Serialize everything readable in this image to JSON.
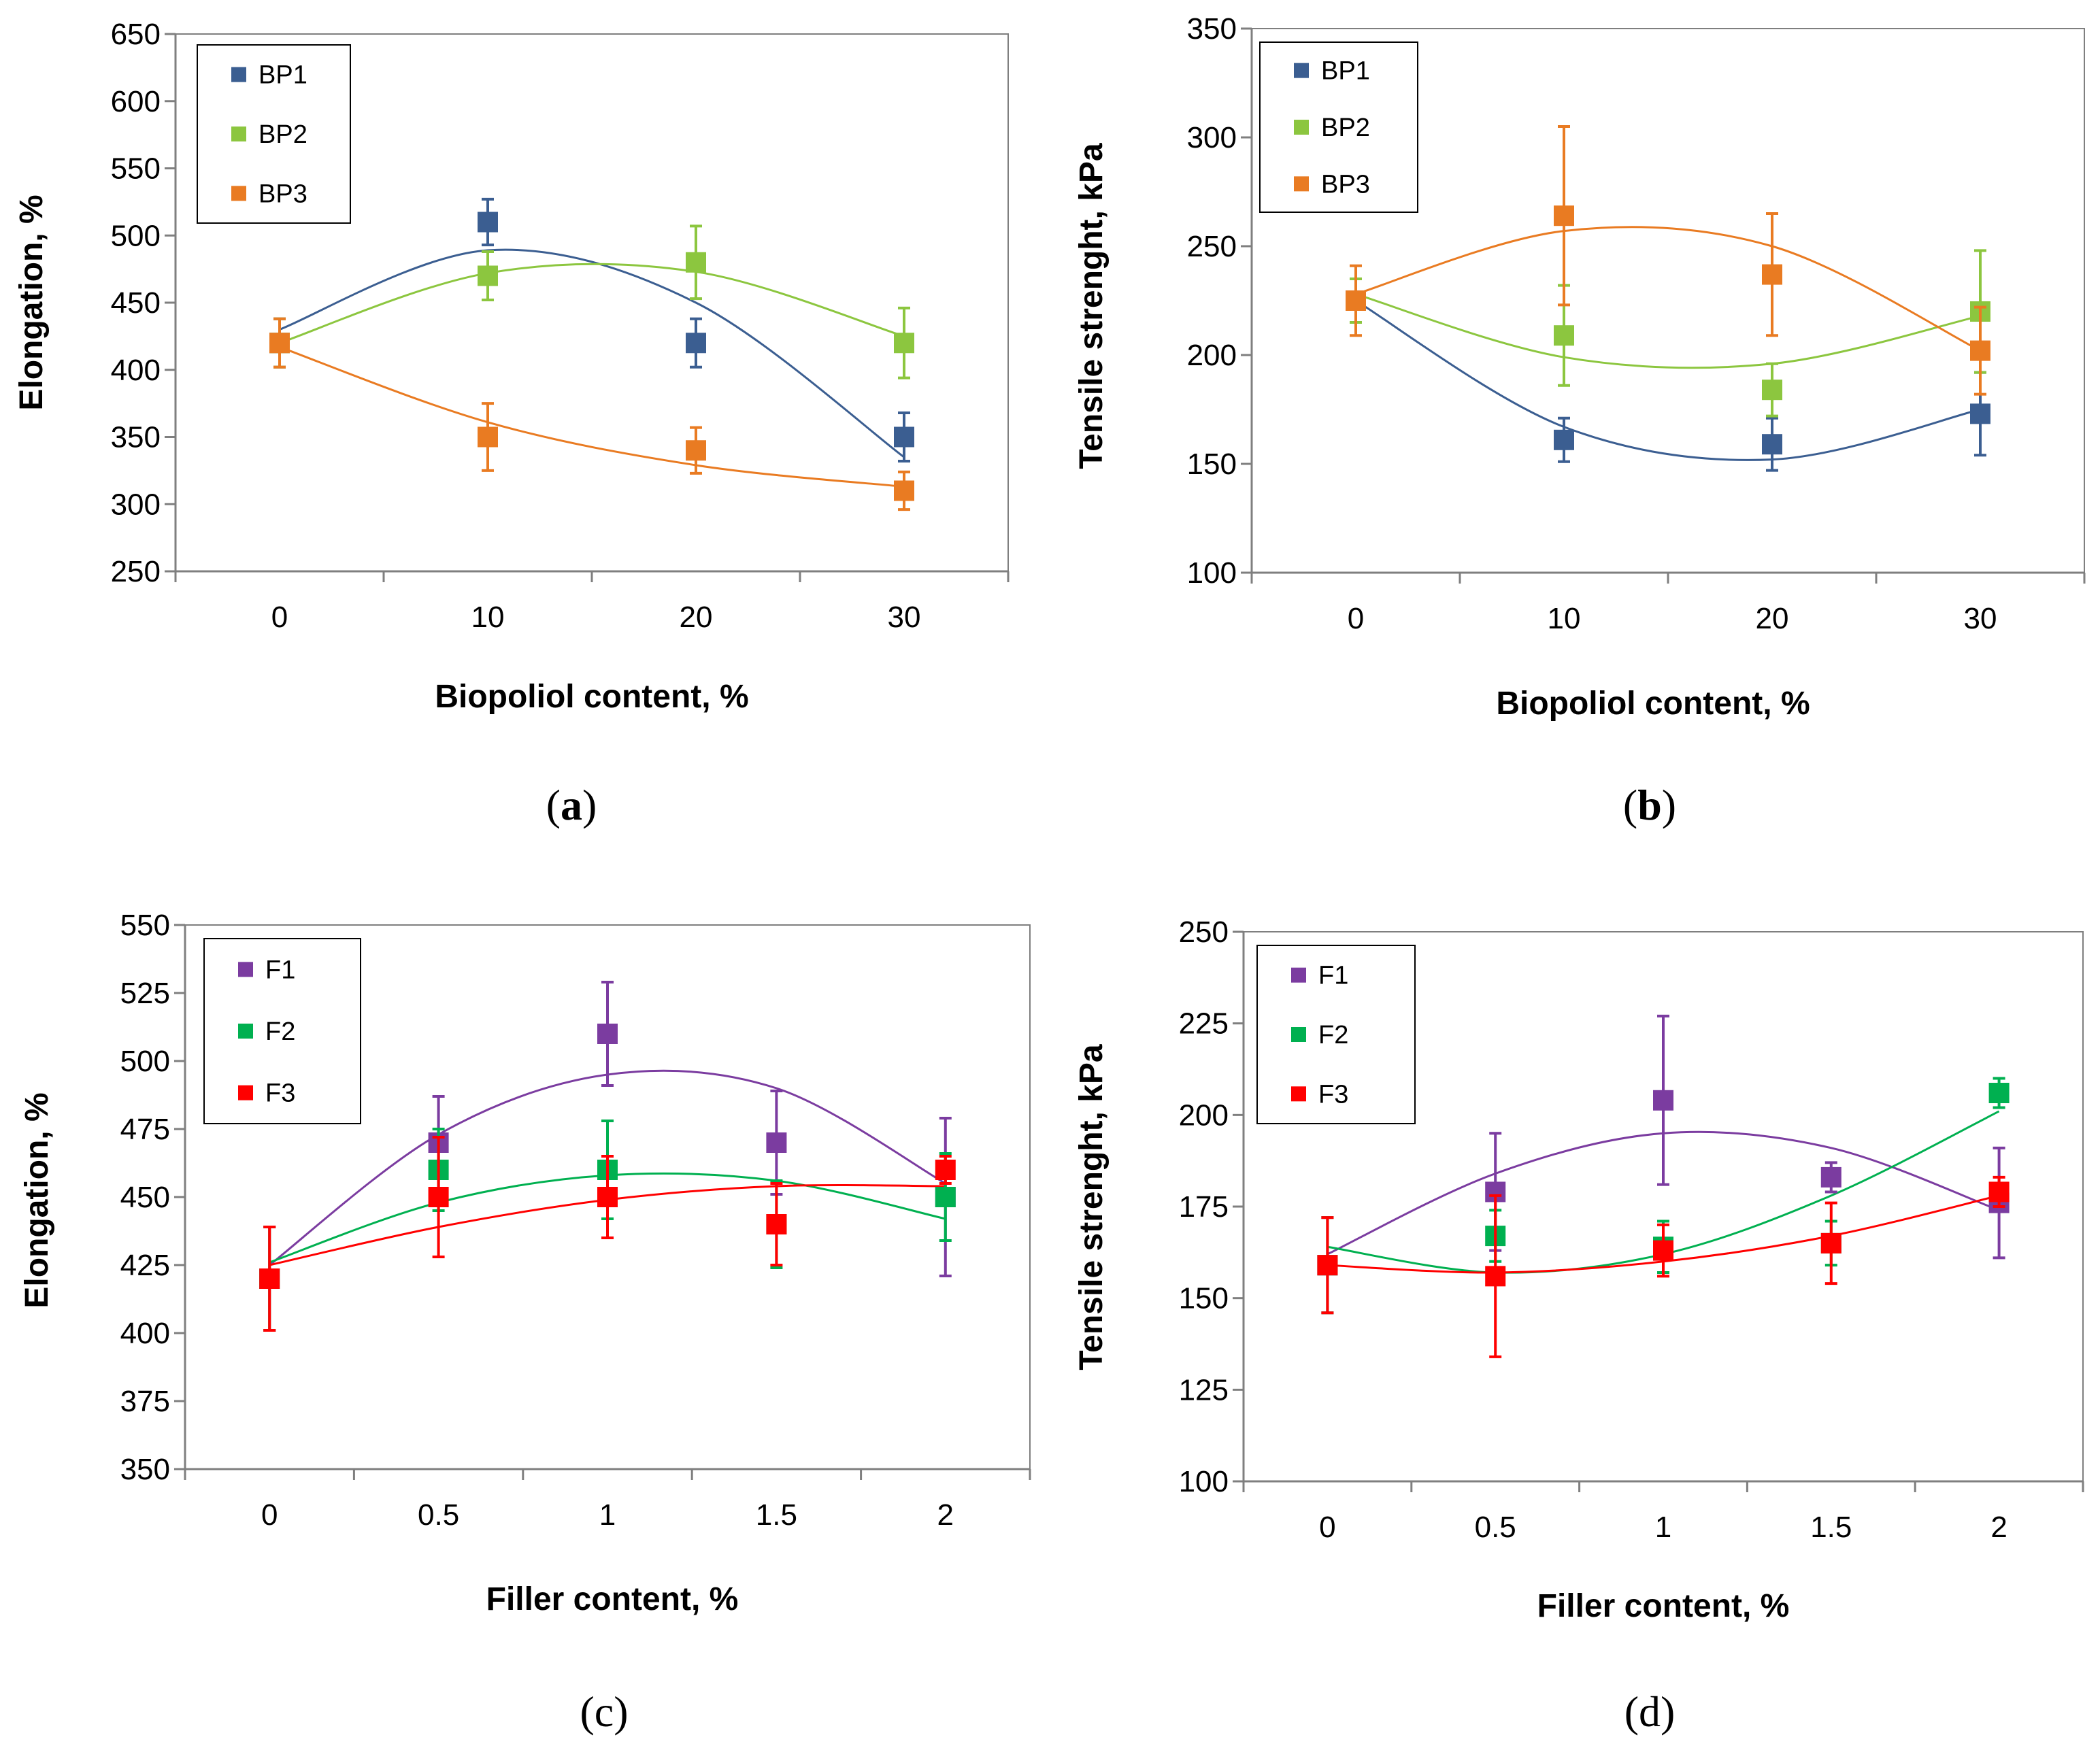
{
  "chart_data": [
    {
      "id": "a",
      "type": "scatter",
      "panel_label": "a",
      "xlabel": "Biopoliol content, %",
      "ylabel": "Elongation, %",
      "x": [
        0,
        10,
        20,
        30
      ],
      "x_tick_labels": [
        "0",
        "10",
        "20",
        "30"
      ],
      "xlim": [
        -5,
        35
      ],
      "ylim": [
        250,
        650
      ],
      "y_ticks": [
        250,
        300,
        350,
        400,
        450,
        500,
        550,
        600,
        650
      ],
      "y_tick_labels": [
        "250",
        "300",
        "350",
        "400",
        "450",
        "500",
        "550",
        "600",
        "650"
      ],
      "legend_position": "top-left",
      "series": [
        {
          "name": "BP1",
          "color": "#3B5E91",
          "values": [
            420,
            510,
            420,
            350
          ],
          "errors": [
            18,
            17,
            18,
            18
          ],
          "trend": [
            430,
            489,
            450,
            335
          ]
        },
        {
          "name": "BP2",
          "color": "#8CC63F",
          "values": [
            420,
            470,
            480,
            420
          ],
          "errors": [
            18,
            18,
            27,
            26
          ],
          "trend": [
            420,
            472,
            473,
            425
          ]
        },
        {
          "name": "BP3",
          "color": "#E97B22",
          "values": [
            420,
            350,
            340,
            310
          ],
          "errors": [
            18,
            25,
            17,
            14
          ],
          "trend": [
            417,
            361,
            329,
            313
          ]
        }
      ]
    },
    {
      "id": "b",
      "type": "scatter",
      "panel_label": "b",
      "xlabel": "Biopoliol content, %",
      "ylabel": "Tensile strenght, kPa",
      "x": [
        0,
        10,
        20,
        30
      ],
      "x_tick_labels": [
        "0",
        "10",
        "20",
        "30"
      ],
      "xlim": [
        -5,
        35
      ],
      "ylim": [
        100,
        350
      ],
      "y_ticks": [
        100,
        150,
        200,
        250,
        300,
        350
      ],
      "y_tick_labels": [
        "100",
        "150",
        "200",
        "250",
        "300",
        "350"
      ],
      "legend_position": "top-left",
      "series": [
        {
          "name": "BP1",
          "color": "#3B5E91",
          "values": [
            225,
            161,
            159,
            173
          ],
          "errors": [
            10,
            10,
            12,
            19
          ],
          "trend": [
            225,
            167,
            152,
            175
          ]
        },
        {
          "name": "BP2",
          "color": "#8CC63F",
          "values": [
            225,
            209,
            184,
            220
          ],
          "errors": [
            10,
            23,
            12,
            28
          ],
          "trend": [
            228,
            199,
            196,
            218
          ]
        },
        {
          "name": "BP3",
          "color": "#E97B22",
          "values": [
            225,
            264,
            237,
            202
          ],
          "errors": [
            16,
            41,
            28,
            20
          ],
          "trend": [
            228,
            257,
            250,
            202
          ]
        }
      ]
    },
    {
      "id": "c",
      "type": "scatter",
      "panel_label": "c",
      "xlabel": "Filler content, %",
      "ylabel": "Elongation, %",
      "x": [
        0,
        0.5,
        1,
        1.5,
        2
      ],
      "x_tick_labels": [
        "0",
        "0.5",
        "1",
        "1.5",
        "2"
      ],
      "xlim": [
        -0.25,
        2.25
      ],
      "ylim": [
        350,
        550
      ],
      "y_ticks": [
        350,
        375,
        400,
        425,
        450,
        475,
        500,
        525,
        550
      ],
      "y_tick_labels": [
        "350",
        "375",
        "400",
        "425",
        "450",
        "475",
        "500",
        "525",
        "550"
      ],
      "legend_position": "top-left",
      "series": [
        {
          "name": "F1",
          "color": "#7B3CA0",
          "values": [
            420,
            470,
            510,
            470,
            450
          ],
          "errors": [
            19,
            17,
            19,
            19,
            29
          ],
          "trend": [
            425,
            473,
            495,
            490,
            455
          ]
        },
        {
          "name": "F2",
          "color": "#00B050",
          "values": [
            420,
            460,
            460,
            440,
            450
          ],
          "errors": [
            19,
            15,
            18,
            16,
            16
          ],
          "trend": [
            426,
            448,
            458,
            456,
            442
          ]
        },
        {
          "name": "F3",
          "color": "#FF0000",
          "values": [
            420,
            450,
            450,
            440,
            460
          ],
          "errors": [
            19,
            22,
            15,
            15,
            5
          ],
          "trend": [
            425,
            439,
            449,
            454,
            454
          ]
        }
      ]
    },
    {
      "id": "d",
      "type": "scatter",
      "panel_label": "d",
      "xlabel": "Filler content, %",
      "ylabel": "Tensile strenght, kPa",
      "x": [
        0,
        0.5,
        1,
        1.5,
        2
      ],
      "x_tick_labels": [
        "0",
        "0.5",
        "1",
        "1.5",
        "2"
      ],
      "xlim": [
        -0.25,
        2.25
      ],
      "ylim": [
        100,
        250
      ],
      "y_ticks": [
        100,
        125,
        150,
        175,
        200,
        225,
        250
      ],
      "y_tick_labels": [
        "100",
        "125",
        "150",
        "175",
        "200",
        "225",
        "250"
      ],
      "legend_position": "top-left",
      "series": [
        {
          "name": "F1",
          "color": "#7B3CA0",
          "values": [
            159,
            179,
            204,
            183,
            176
          ],
          "errors": [
            13,
            16,
            23,
            4,
            15
          ],
          "trend": [
            162,
            184,
            195,
            191,
            174
          ]
        },
        {
          "name": "F2",
          "color": "#00B050",
          "values": [
            159,
            167,
            164,
            165,
            206
          ],
          "errors": [
            13,
            7,
            7,
            6,
            4
          ],
          "trend": [
            164,
            157,
            162,
            178,
            201
          ]
        },
        {
          "name": "F3",
          "color": "#FF0000",
          "values": [
            159,
            156,
            163,
            165,
            179
          ],
          "errors": [
            13,
            22,
            7,
            11,
            4
          ],
          "trend": [
            159,
            157,
            160,
            167,
            178
          ]
        }
      ]
    }
  ]
}
